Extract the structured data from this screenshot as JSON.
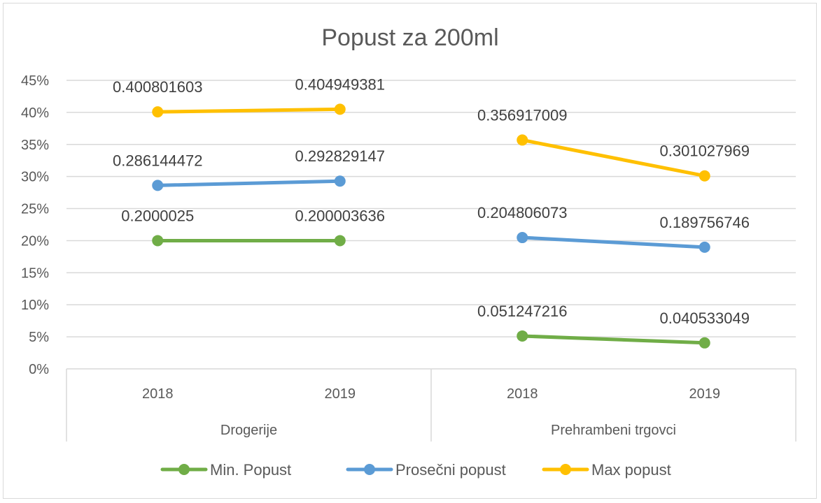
{
  "chart_data": {
    "type": "line",
    "title": "Popust za 200ml",
    "y_ticks": [
      "0%",
      "5%",
      "10%",
      "15%",
      "20%",
      "25%",
      "30%",
      "35%",
      "40%",
      "45%"
    ],
    "ylim": [
      0,
      0.45
    ],
    "grid": true,
    "legend_position": "bottom",
    "groups": [
      {
        "name": "Drogerije",
        "categories": [
          "2018",
          "2019"
        ]
      },
      {
        "name": "Prehrambeni trgovci",
        "categories": [
          "2018",
          "2019"
        ]
      }
    ],
    "series": [
      {
        "name": "Min. Popust",
        "color": "#70ad47",
        "values": [
          0.2000025,
          0.200003636,
          0.051247216,
          0.040533049
        ],
        "labels": [
          "0.2000025",
          "0.200003636",
          "0.051247216",
          "0.040533049"
        ]
      },
      {
        "name": "Prosečni popust",
        "color": "#5b9bd5",
        "values": [
          0.286144472,
          0.292829147,
          0.204806073,
          0.189756746
        ],
        "labels": [
          "0.286144472",
          "0.292829147",
          "0.204806073",
          "0.189756746"
        ]
      },
      {
        "name": "Max popust",
        "color": "#ffc000",
        "values": [
          0.400801603,
          0.404949381,
          0.356917009,
          0.301027969
        ],
        "labels": [
          "0.400801603",
          "0.404949381",
          "0.356917009",
          "0.301027969"
        ]
      }
    ]
  }
}
